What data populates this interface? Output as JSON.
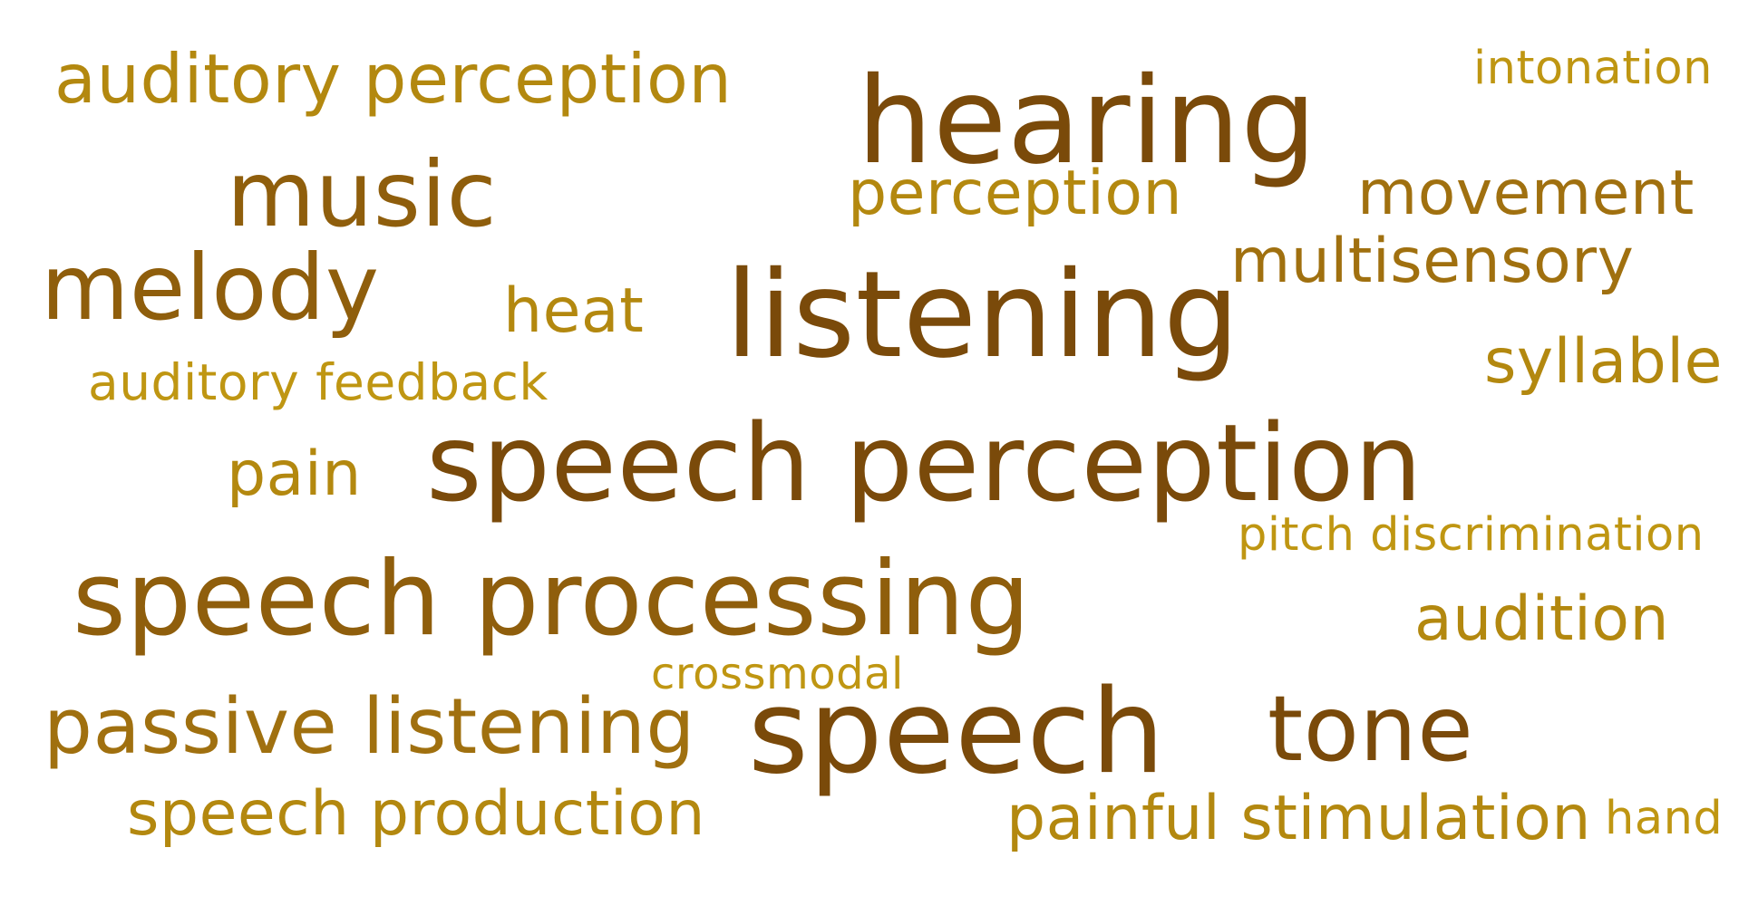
{
  "words": {
    "auditory_perception": "auditory perception",
    "intonation": "intonation",
    "hearing": "hearing",
    "music": "music",
    "perception": "perception",
    "movement": "movement",
    "multisensory": "multisensory",
    "melody": "melody",
    "heat": "heat",
    "listening": "listening",
    "syllable": "syllable",
    "auditory_feedback": "auditory feedback",
    "pain": "pain",
    "speech_perception": "speech perception",
    "pitch_discrimination": "pitch discrimination",
    "speech_processing": "speech processing",
    "audition": "audition",
    "crossmodal": "crossmodal",
    "passive_listening": "passive listening",
    "speech": "speech",
    "tone": "tone",
    "speech_production": "speech production",
    "painful_stimulation": "painful stimulation",
    "hand": "hand"
  },
  "colors": {
    "dark": "#7a4a0a",
    "mid": "#8f5e0c",
    "warm": "#a0700f",
    "light": "#b3880f",
    "pale": "#bf9612"
  }
}
